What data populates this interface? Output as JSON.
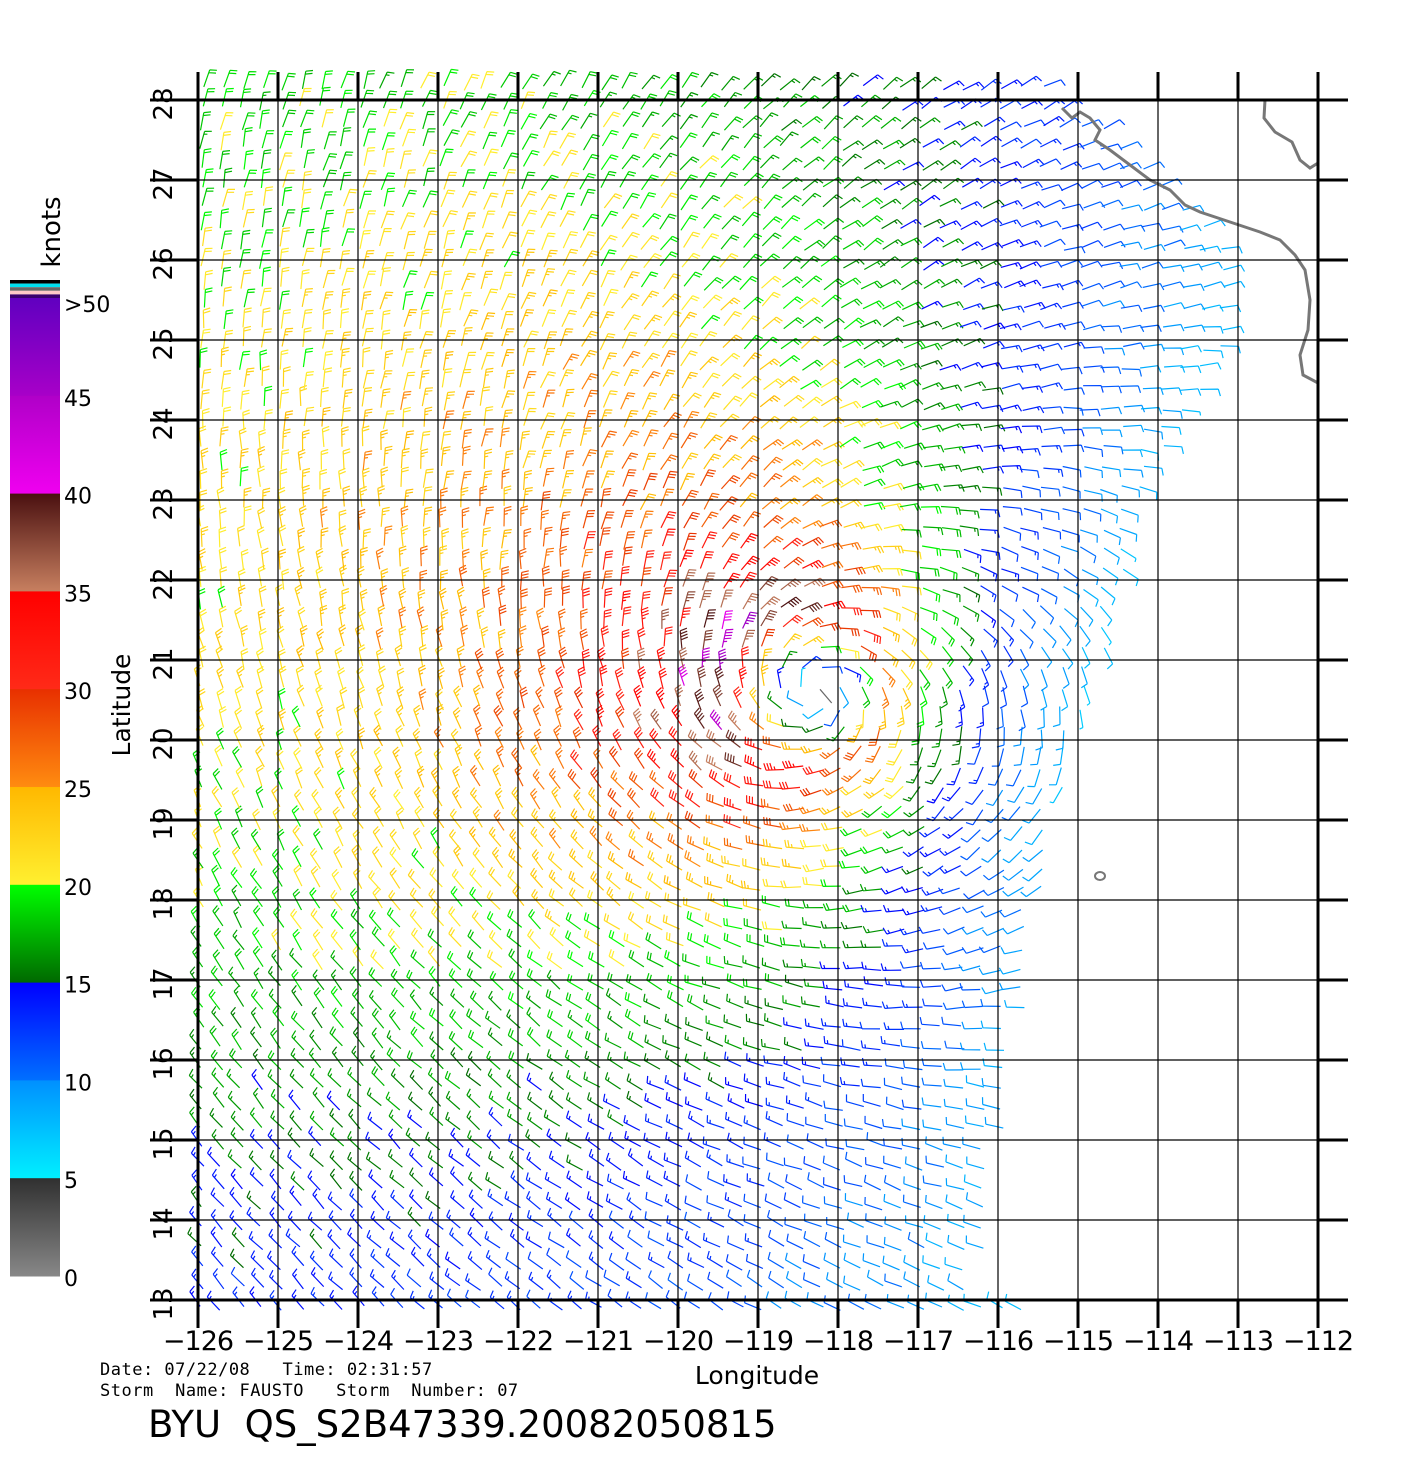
{
  "plot": {
    "xlabel": "Longitude",
    "ylabel": "Latitude",
    "x_ticks": [
      "−126",
      "−125",
      "−124",
      "−123",
      "−122",
      "−121",
      "−120",
      "−119",
      "−118",
      "−117",
      "−116",
      "−115",
      "−114",
      "−113",
      "−112"
    ],
    "y_ticks": [
      "13",
      "14",
      "15",
      "16",
      "17",
      "18",
      "19",
      "20",
      "21",
      "22",
      "23",
      "24",
      "25",
      "26",
      "27",
      "28"
    ],
    "lon_range": [
      -126,
      -112
    ],
    "lat_range": [
      13,
      28
    ],
    "grid": true,
    "grid_color": "#000000",
    "coastline_color": "#777777"
  },
  "colorbar": {
    "unit_label": "knots",
    "labels": [
      ">50",
      "45",
      "40",
      "35",
      "30",
      "25",
      "20",
      "15",
      "10",
      "5",
      "0"
    ],
    "top_stripes": [
      "#000000",
      "#00e0f0",
      "#666666",
      "#ffc8c8",
      "#3a006e"
    ],
    "segments": [
      {
        "from": 45,
        "to": 50,
        "top": "#6000c0",
        "bottom": "#a800c8"
      },
      {
        "from": 40,
        "to": 45,
        "top": "#b000c8",
        "bottom": "#f000f0"
      },
      {
        "from": 35,
        "to": 40,
        "top": "#4a1010",
        "bottom": "#c88060"
      },
      {
        "from": 30,
        "to": 35,
        "top": "#ff0000",
        "bottom": "#ff2a18"
      },
      {
        "from": 25,
        "to": 30,
        "top": "#e83000",
        "bottom": "#ff8c10"
      },
      {
        "from": 20,
        "to": 25,
        "top": "#ffb800",
        "bottom": "#fff030"
      },
      {
        "from": 15,
        "to": 20,
        "top": "#00ff00",
        "bottom": "#006800"
      },
      {
        "from": 10,
        "to": 15,
        "top": "#0000ff",
        "bottom": "#0070ff"
      },
      {
        "from": 5,
        "to": 10,
        "top": "#0090ff",
        "bottom": "#00f0ff"
      },
      {
        "from": 0,
        "to": 5,
        "top": "#303030",
        "bottom": "#888888"
      }
    ]
  },
  "info": {
    "date_line": "Date: 07/22/08   Time: 02:31:57",
    "storm_line": "Storm  Name: FAUSTO   Storm  Number: 07",
    "title": "BYU  QS_S2B47339.20082050815"
  }
}
